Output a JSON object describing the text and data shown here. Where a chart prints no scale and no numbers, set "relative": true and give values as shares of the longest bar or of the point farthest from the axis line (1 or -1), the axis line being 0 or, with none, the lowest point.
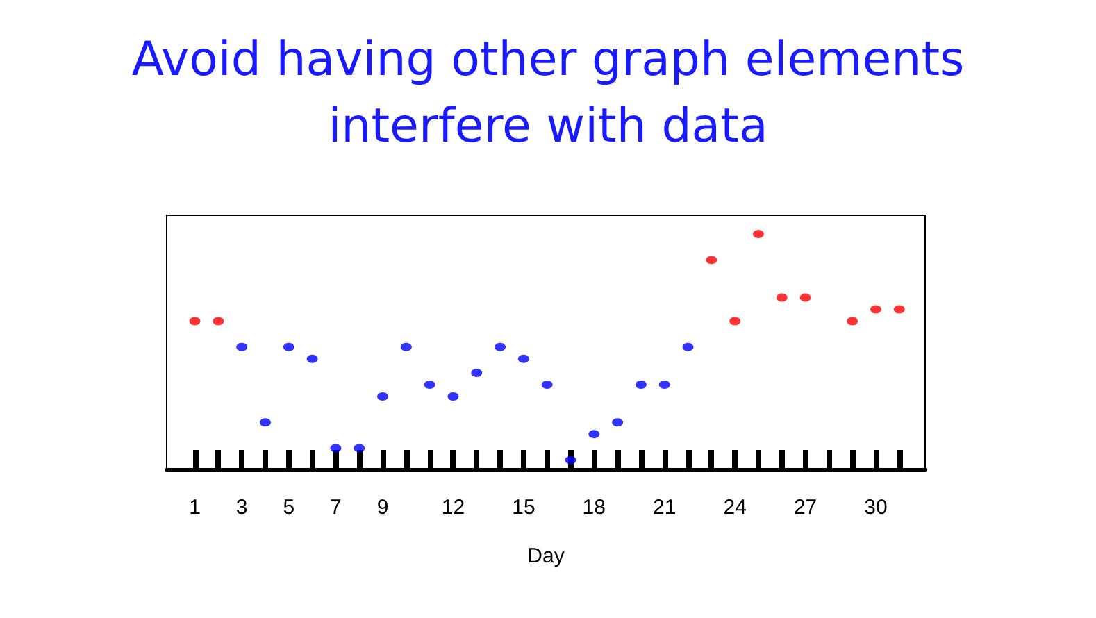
{
  "chart_data": {
    "type": "scatter",
    "title": "Avoid having other graph elements\ninterfere with data",
    "xlabel": "Day",
    "relative": true,
    "marker": "circle",
    "grid": false,
    "x": [
      1,
      2,
      3,
      4,
      5,
      6,
      7,
      8,
      9,
      10,
      11,
      12,
      13,
      14,
      15,
      16,
      17,
      18,
      19,
      20,
      21,
      22,
      23,
      24,
      25,
      26,
      27,
      28,
      29,
      30,
      31
    ],
    "values": [
      0.63,
      0.63,
      0.52,
      0.2,
      0.52,
      0.47,
      0.09,
      0.09,
      0.31,
      0.52,
      0.36,
      0.31,
      0.41,
      0.52,
      0.47,
      0.36,
      0.04,
      0.15,
      0.2,
      0.36,
      0.36,
      0.52,
      0.89,
      0.63,
      1,
      0.73,
      0.73,
      null,
      0.63,
      0.68,
      0.68
    ],
    "colors": [
      "#ff0000",
      "#ff0000",
      "#0000ff",
      "#0000ff",
      "#0000ff",
      "#0000ff",
      "#0000ff",
      "#0000ff",
      "#0000ff",
      "#0000ff",
      "#0000ff",
      "#0000ff",
      "#0000ff",
      "#0000ff",
      "#0000ff",
      "#0000ff",
      "#0000ff",
      "#0000ff",
      "#0000ff",
      "#0000ff",
      "#0000ff",
      "#0000ff",
      "#ff0000",
      "#ff0000",
      "#ff0000",
      "#ff0000",
      "#ff0000",
      "#ff0000",
      "#ff0000",
      "#ff0000",
      "#ff0000"
    ],
    "xlim": [
      -0.2,
      32.1
    ],
    "xticks": [
      1,
      {
        "value": 2,
        "label": null
      },
      3,
      {
        "value": 4,
        "label": null
      },
      5,
      {
        "value": 6,
        "label": null
      },
      7,
      {
        "value": 8,
        "label": null
      },
      9,
      {
        "value": 10,
        "label": null
      },
      {
        "value": 11,
        "label": null
      },
      12,
      {
        "value": 13,
        "label": null
      },
      {
        "value": 14,
        "label": null
      },
      15,
      {
        "value": 16,
        "label": null
      },
      {
        "value": 17,
        "label": null
      },
      18,
      {
        "value": 19,
        "label": null
      },
      {
        "value": 20,
        "label": null
      },
      21,
      {
        "value": 22,
        "label": null
      },
      {
        "value": 23,
        "label": null
      },
      24,
      {
        "value": 25,
        "label": null
      },
      {
        "value": 26,
        "label": null
      },
      27,
      {
        "value": 28,
        "label": null
      },
      {
        "value": 29,
        "label": null
      },
      30,
      {
        "value": 31,
        "label": null
      }
    ]
  }
}
